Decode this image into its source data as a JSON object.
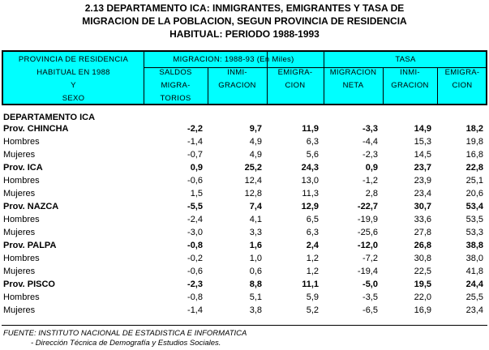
{
  "title": [
    "2.13 DEPARTAMENTO ICA: INMIGRANTES, EMIGRANTES Y TASA DE",
    "MIGRACION DE LA POBLACION, SEGUN PROVINCIA DE RESIDENCIA",
    "HABITUAL: PERIODO 1988-1993"
  ],
  "header": {
    "col0": [
      "PROVINCIA DE RESIDENCIA",
      "HABITUAL EN 1988",
      "Y",
      "SEXO"
    ],
    "group1": "MIGRACION: 1988-93 (En Miles)",
    "group2": "TASA",
    "cols": [
      [
        "SALDOS",
        "MIGRA-",
        "TORIOS"
      ],
      [
        "INMI-",
        "GRACION"
      ],
      [
        "EMIGRA-",
        "CION"
      ],
      [
        "MIGRACION",
        "NETA"
      ],
      [
        "INMI-",
        "GRACION"
      ],
      [
        "EMIGRA-",
        "CION"
      ]
    ]
  },
  "section": "DEPARTAMENTO ICA",
  "rows": [
    {
      "label": "Prov. CHINCHA",
      "bold": true,
      "values": [
        "-2,2",
        "9,7",
        "11,9",
        "-3,3",
        "14,9",
        "18,2"
      ]
    },
    {
      "label": "Hombres",
      "values": [
        "-1,4",
        "4,9",
        "6,3",
        "-4,4",
        "15,3",
        "19,8"
      ]
    },
    {
      "label": "Mujeres",
      "values": [
        "-0,7",
        "4,9",
        "5,6",
        "-2,3",
        "14,5",
        "16,8"
      ]
    },
    {
      "label": "Prov. ICA",
      "bold": true,
      "values": [
        "0,9",
        "25,2",
        "24,3",
        "0,9",
        "23,7",
        "22,8"
      ]
    },
    {
      "label": "Hombres",
      "values": [
        "-0,6",
        "12,4",
        "13,0",
        "-1,2",
        "23,9",
        "25,1"
      ]
    },
    {
      "label": "Mujeres",
      "values": [
        "1,5",
        "12,8",
        "11,3",
        "2,8",
        "23,4",
        "20,6"
      ]
    },
    {
      "label": "Prov. NAZCA",
      "bold": true,
      "values": [
        "-5,5",
        "7,4",
        "12,9",
        "-22,7",
        "30,7",
        "53,4"
      ]
    },
    {
      "label": "Hombres",
      "values": [
        "-2,4",
        "4,1",
        "6,5",
        "-19,9",
        "33,6",
        "53,5"
      ]
    },
    {
      "label": "Mujeres",
      "values": [
        "-3,0",
        "3,3",
        "6,3",
        "-25,6",
        "27,8",
        "53,3"
      ]
    },
    {
      "label": "Prov. PALPA",
      "bold": true,
      "values": [
        "-0,8",
        "1,6",
        "2,4",
        "-12,0",
        "26,8",
        "38,8"
      ]
    },
    {
      "label": "Hombres",
      "values": [
        "-0,2",
        "1,0",
        "1,2",
        "-7,2",
        "30,8",
        "38,0"
      ]
    },
    {
      "label": "Mujeres",
      "values": [
        "-0,6",
        "0,6",
        "1,2",
        "-19,4",
        "22,5",
        "41,8"
      ]
    },
    {
      "label": "Prov. PISCO",
      "bold": true,
      "values": [
        "-2,3",
        "8,8",
        "11,1",
        "-5,0",
        "19,5",
        "24,4"
      ]
    },
    {
      "label": "Hombres",
      "values": [
        "-0,8",
        "5,1",
        "5,9",
        "-3,5",
        "22,0",
        "25,5"
      ]
    },
    {
      "label": "Mujeres",
      "values": [
        "-1,4",
        "3,8",
        "5,2",
        "-6,5",
        "16,9",
        "23,4"
      ]
    }
  ],
  "footer": [
    "FUENTE: INSTITUTO NACIONAL DE ESTADISTICA E INFORMATICA",
    "- Dirección Técnica de Demografía y Estudios Sociales."
  ]
}
